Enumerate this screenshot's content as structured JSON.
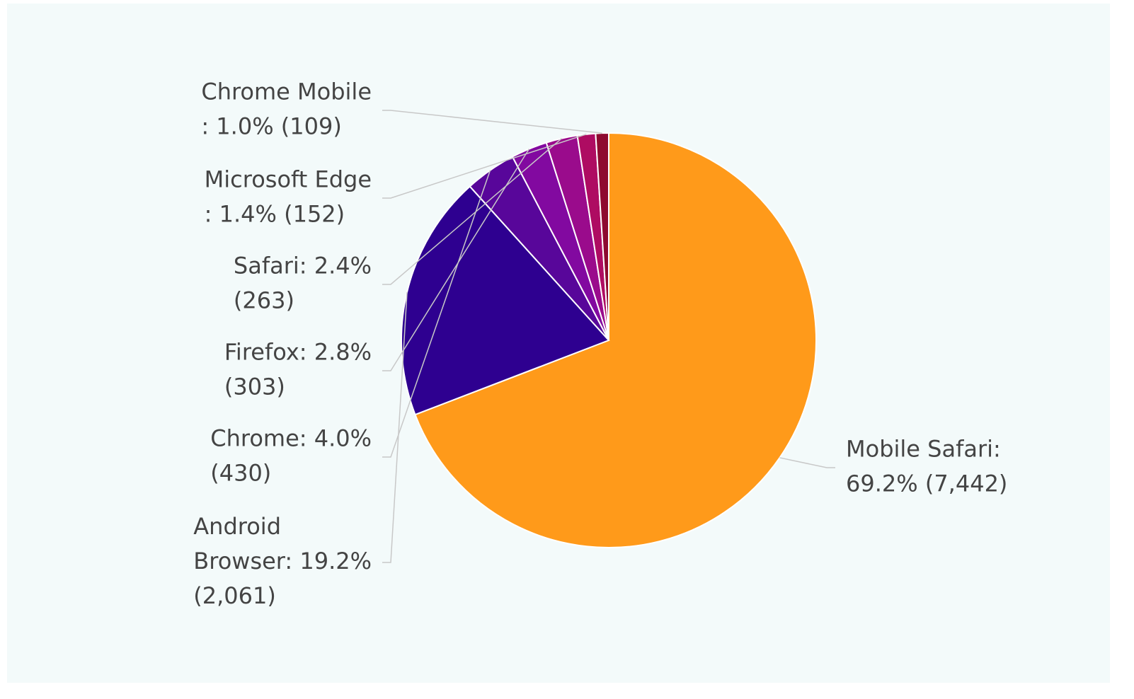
{
  "chart_data": {
    "type": "pie",
    "values": [
      7442,
      2061,
      430,
      303,
      263,
      152,
      109
    ],
    "value_labels": [
      [
        "Mobile Safari:",
        "69.2% (7,442)"
      ],
      [
        "Android",
        "Browser: 19.2%",
        "(2,061)"
      ],
      [
        "Chrome: 4.0%",
        "(430)"
      ],
      [
        "Firefox: 2.8%",
        "(303)"
      ],
      [
        "Safari: 2.4%",
        "(263)"
      ],
      [
        "Microsoft Edge",
        ": 1.4% (152)"
      ],
      [
        "Chrome Mobile",
        ": 1.0% (109)"
      ]
    ],
    "colors": [
      "#ff9a1a",
      "#2e0090",
      "#58069a",
      "#8209a0",
      "#9a0b8c",
      "#ae0c62",
      "#8e0a30"
    ]
  }
}
